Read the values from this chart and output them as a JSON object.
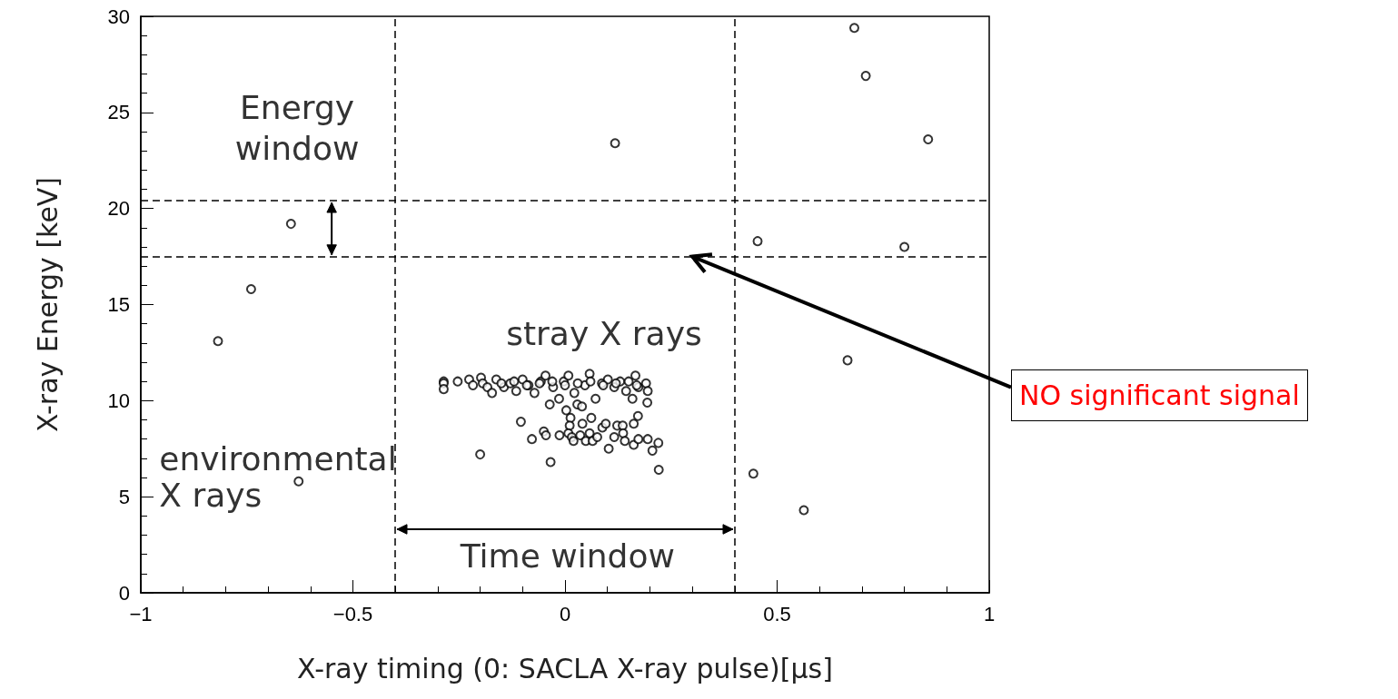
{
  "chart_data": {
    "type": "scatter",
    "xlabel": "X-ray timing (0: SACLA X-ray pulse)[μs]",
    "ylabel": "X-ray Energy [keV]",
    "xlim": [
      -1,
      1
    ],
    "xticks": [
      -1,
      -0.5,
      0,
      0.5,
      1
    ],
    "ylim": [
      0,
      30
    ],
    "yticks": [
      0,
      5,
      10,
      15,
      20,
      25,
      30
    ],
    "marker": "circle",
    "series": [
      {
        "color": "#000000",
        "x": [
          0.682,
          0.709,
          0.856,
          0.118,
          -0.646,
          0.454,
          0.8,
          -0.74,
          -0.818,
          0.666,
          -0.628,
          0.444,
          0.563,
          -0.104,
          -0.078,
          -0.05,
          -0.045,
          -0.2,
          -0.034,
          0.003,
          0.013,
          0.011,
          -0.013,
          0.008,
          0.016,
          0.02,
          0.041,
          0.062,
          0.036,
          0.049,
          0.058,
          0.065,
          0.076,
          0.088,
          0.096,
          0.103,
          0.116,
          0.123,
          0.136,
          0.137,
          0.141,
          0.162,
          0.172,
          0.162,
          0.173,
          0.195,
          0.206,
          0.22,
          0.221,
          -0.286,
          -0.286,
          -0.286,
          -0.253,
          -0.226,
          -0.217,
          -0.198,
          -0.194,
          -0.183,
          -0.172,
          -0.162,
          -0.144,
          -0.129,
          -0.115,
          -0.1,
          -0.086,
          -0.072,
          -0.057,
          -0.046,
          -0.036,
          -0.028,
          -0.014,
          -0.003,
          0.008,
          0.022,
          0.029,
          0.04,
          0.047,
          0.058,
          0.072,
          0.087,
          0.101,
          0.116,
          0.13,
          0.144,
          0.159,
          0.166,
          0.173,
          0.191,
          0.195,
          0.194,
          0.169,
          -0.15,
          -0.12,
          -0.09,
          -0.06,
          -0.03,
          0.0,
          0.03,
          0.06,
          0.09,
          0.12,
          0.15
        ],
        "values": [
          29.4,
          26.9,
          23.6,
          23.4,
          19.2,
          18.3,
          18.0,
          15.8,
          13.1,
          12.1,
          5.8,
          6.2,
          4.3,
          8.9,
          8.0,
          8.4,
          8.2,
          7.2,
          6.8,
          9.5,
          9.1,
          8.7,
          8.2,
          8.3,
          8.1,
          7.9,
          8.8,
          9.1,
          8.2,
          7.9,
          8.3,
          7.9,
          8.1,
          8.6,
          8.8,
          7.5,
          8.1,
          8.7,
          8.7,
          8.3,
          7.9,
          8.8,
          9.2,
          7.7,
          8.0,
          8.0,
          7.4,
          7.8,
          6.4,
          11.0,
          10.9,
          10.6,
          11.0,
          11.1,
          10.8,
          11.2,
          10.9,
          10.7,
          10.4,
          11.1,
          10.7,
          10.9,
          10.5,
          11.1,
          10.8,
          10.4,
          11.0,
          11.3,
          9.8,
          10.7,
          10.1,
          11.0,
          11.3,
          10.4,
          9.8,
          9.7,
          10.8,
          11.4,
          10.1,
          10.9,
          11.1,
          10.7,
          11.0,
          10.5,
          10.1,
          11.3,
          10.7,
          10.9,
          10.5,
          9.9,
          10.8,
          10.9,
          11.0,
          10.8,
          10.9,
          11.0,
          10.8,
          10.9,
          11.0,
          10.8,
          10.9,
          11.0
        ]
      }
    ],
    "ref_lines": [
      {
        "axis": "x",
        "value": -0.4,
        "line_style": "dashed"
      },
      {
        "axis": "x",
        "value": 0.4,
        "line_style": "dashed"
      },
      {
        "axis": "y",
        "value": 20.4,
        "line_style": "dashed"
      },
      {
        "axis": "y",
        "value": 17.5,
        "line_style": "dashed"
      }
    ],
    "annotations": [
      {
        "text": "Energy window",
        "x": -0.55,
        "y": 20.4
      },
      "stray X rays",
      "environmental X rays",
      "Time window",
      {
        "text": "NO significant signal",
        "x": 0.3,
        "y": 17.5
      }
    ]
  }
}
